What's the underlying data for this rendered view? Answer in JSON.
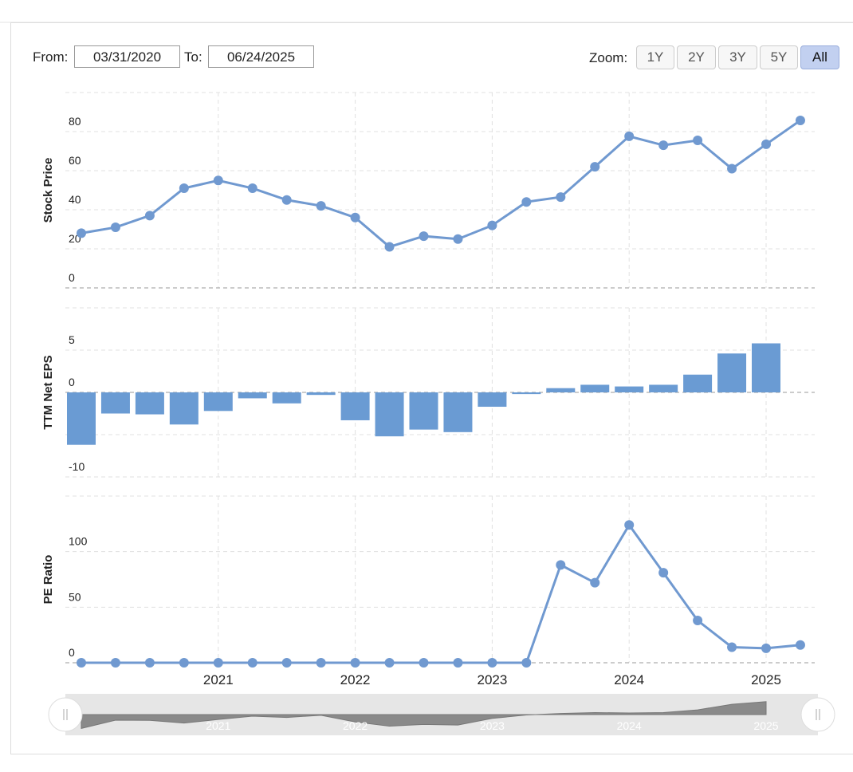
{
  "controls": {
    "from_label": "From:",
    "from_date": "03/31/2020",
    "to_label": "To:",
    "to_date": "06/24/2025",
    "zoom_label": "Zoom:",
    "zoom_buttons": [
      "1Y",
      "2Y",
      "3Y",
      "5Y",
      "All"
    ],
    "active_button": "All"
  },
  "chart_data": [
    {
      "type": "line",
      "y_label": "Stock Price",
      "color": "#7099d0",
      "categories": [
        null,
        null,
        null,
        null,
        "2021",
        null,
        null,
        null,
        "2022",
        null,
        null,
        null,
        "2023",
        null,
        null,
        null,
        "2024",
        null,
        null,
        null,
        "2025",
        null
      ],
      "values": [
        28,
        31,
        37,
        51,
        55,
        51,
        45,
        42,
        36,
        21,
        26.5,
        25,
        32,
        44,
        46.5,
        62,
        77.6,
        73,
        75.5,
        61,
        73.5,
        85.7
      ],
      "ylim": [
        0,
        100
      ],
      "yticks": [
        0,
        20,
        40,
        60,
        80
      ],
      "grid": true
    },
    {
      "type": "bar",
      "y_label": "TTM Net EPS",
      "color": "#6a9bd3",
      "categories": [
        null,
        null,
        null,
        null,
        "2021",
        null,
        null,
        null,
        "2022",
        null,
        null,
        null,
        "2023",
        null,
        null,
        null,
        "2024",
        null,
        null,
        null,
        "2025",
        null
      ],
      "values": [
        -6.2,
        -2.5,
        -2.6,
        -3.8,
        -2.2,
        -0.7,
        -1.3,
        -0.3,
        -3.3,
        -5.2,
        -4.4,
        -4.7,
        -1.7,
        -0.2,
        0.5,
        0.9,
        0.7,
        0.9,
        2.1,
        4.6,
        5.8,
        null
      ],
      "ylim": [
        -10,
        10
      ],
      "yticks": [
        -10,
        -5,
        0,
        5
      ],
      "grid": true
    },
    {
      "type": "line",
      "y_label": "PE Ratio",
      "color": "#7099d0",
      "categories": [
        null,
        null,
        null,
        null,
        "2021",
        null,
        null,
        null,
        "2022",
        null,
        null,
        null,
        "2023",
        null,
        null,
        null,
        "2024",
        null,
        null,
        null,
        "2025",
        null
      ],
      "values": [
        0,
        0,
        0,
        0,
        0,
        0,
        0,
        0,
        0,
        0,
        0,
        0,
        0,
        0,
        88,
        72,
        124,
        81,
        38,
        14,
        13,
        16
      ],
      "ylim": [
        0,
        150
      ],
      "yticks": [
        0,
        50,
        100
      ],
      "grid": true
    }
  ]
}
